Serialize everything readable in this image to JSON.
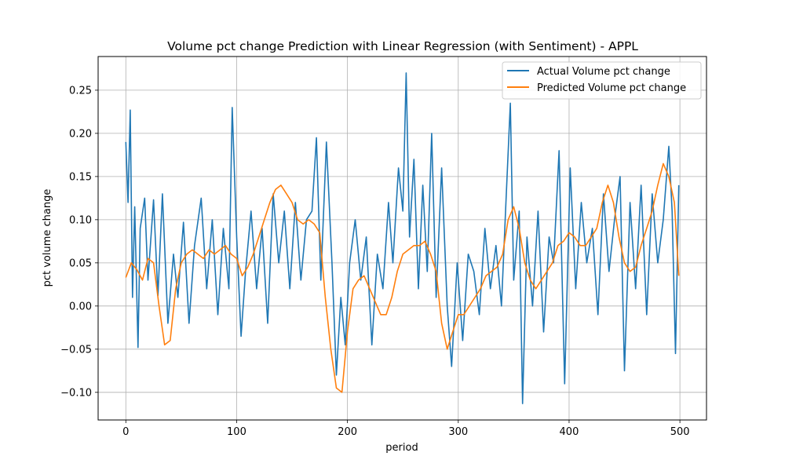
{
  "chart_data": {
    "type": "line",
    "title": "Volume pct change Prediction with Linear Regression (with Sentiment) - APPL",
    "xlabel": "period",
    "ylabel": "pct volume change",
    "xlim": [
      -25,
      524
    ],
    "ylim": [
      -0.132,
      0.289
    ],
    "xticks": [
      0,
      100,
      200,
      300,
      400,
      500
    ],
    "xtick_labels": [
      "0",
      "100",
      "200",
      "300",
      "400",
      "500"
    ],
    "yticks": [
      -0.1,
      -0.05,
      0.0,
      0.05,
      0.1,
      0.15,
      0.2,
      0.25
    ],
    "ytick_labels": [
      "−0.10",
      "−0.05",
      "0.00",
      "0.05",
      "0.10",
      "0.15",
      "0.20",
      "0.25"
    ],
    "grid": true,
    "legend_position": "top-right",
    "series": [
      {
        "name": "Actual Volume pct change",
        "color": "#1f77b4",
        "x": [
          0,
          2,
          4,
          6,
          8,
          11,
          13,
          17,
          20,
          25,
          29,
          33,
          38,
          43,
          47,
          52,
          57,
          62,
          68,
          73,
          78,
          83,
          88,
          93,
          96,
          100,
          104,
          108,
          113,
          118,
          123,
          128,
          133,
          138,
          143,
          148,
          153,
          158,
          163,
          168,
          172,
          176,
          181,
          186,
          190,
          194,
          198,
          202,
          207,
          212,
          217,
          222,
          227,
          232,
          237,
          241,
          246,
          250,
          253,
          256,
          260,
          264,
          268,
          272,
          276,
          280,
          285,
          290,
          294,
          299,
          304,
          309,
          314,
          319,
          324,
          329,
          334,
          339,
          343,
          347,
          350,
          355,
          358,
          362,
          367,
          372,
          377,
          382,
          386,
          391,
          396,
          401,
          406,
          411,
          416,
          421,
          426,
          431,
          436,
          441,
          446,
          450,
          455,
          460,
          465,
          470,
          475,
          480,
          485,
          490,
          493,
          496,
          499
        ],
        "y": [
          0.19,
          0.12,
          0.227,
          0.01,
          0.115,
          -0.048,
          0.09,
          0.125,
          0.03,
          0.123,
          0.012,
          0.13,
          -0.02,
          0.06,
          0.01,
          0.097,
          -0.02,
          0.07,
          0.125,
          0.02,
          0.1,
          -0.01,
          0.09,
          0.02,
          0.23,
          0.08,
          -0.035,
          0.04,
          0.11,
          0.02,
          0.09,
          -0.02,
          0.13,
          0.05,
          0.11,
          0.02,
          0.12,
          0.03,
          0.1,
          0.11,
          0.195,
          0.03,
          0.19,
          0.05,
          -0.08,
          0.01,
          -0.045,
          0.05,
          0.1,
          0.03,
          0.08,
          -0.045,
          0.06,
          0.02,
          0.12,
          0.05,
          0.16,
          0.11,
          0.27,
          0.08,
          0.17,
          0.02,
          0.14,
          0.04,
          0.2,
          0.01,
          0.16,
          0.0,
          -0.07,
          0.05,
          -0.04,
          0.06,
          0.04,
          -0.01,
          0.09,
          0.02,
          0.07,
          0.0,
          0.12,
          0.235,
          0.03,
          0.11,
          -0.113,
          0.08,
          0.0,
          0.11,
          -0.03,
          0.08,
          0.05,
          0.18,
          -0.09,
          0.16,
          0.02,
          0.12,
          0.05,
          0.09,
          -0.01,
          0.13,
          0.04,
          0.1,
          0.15,
          -0.075,
          0.12,
          0.02,
          0.14,
          -0.01,
          0.13,
          0.05,
          0.1,
          0.185,
          0.11,
          -0.055,
          0.14
        ]
      },
      {
        "name": "Predicted Volume pct change",
        "color": "#ff7f0e",
        "x": [
          0,
          5,
          10,
          15,
          20,
          25,
          30,
          35,
          40,
          45,
          50,
          55,
          60,
          65,
          70,
          75,
          80,
          85,
          90,
          95,
          100,
          105,
          110,
          115,
          120,
          125,
          130,
          135,
          140,
          145,
          150,
          155,
          160,
          165,
          170,
          175,
          180,
          185,
          190,
          195,
          200,
          205,
          210,
          215,
          220,
          225,
          230,
          235,
          240,
          245,
          250,
          255,
          260,
          265,
          270,
          275,
          280,
          285,
          290,
          295,
          300,
          305,
          310,
          315,
          320,
          325,
          330,
          335,
          340,
          345,
          350,
          355,
          360,
          365,
          370,
          375,
          380,
          385,
          390,
          395,
          400,
          405,
          410,
          415,
          420,
          425,
          430,
          435,
          440,
          445,
          450,
          455,
          460,
          465,
          470,
          475,
          480,
          485,
          490,
          495,
          499
        ],
        "y": [
          0.033,
          0.05,
          0.042,
          0.03,
          0.055,
          0.05,
          0.0,
          -0.045,
          -0.04,
          0.02,
          0.05,
          0.06,
          0.065,
          0.06,
          0.055,
          0.065,
          0.06,
          0.065,
          0.07,
          0.06,
          0.055,
          0.035,
          0.045,
          0.06,
          0.08,
          0.1,
          0.12,
          0.135,
          0.14,
          0.13,
          0.12,
          0.1,
          0.095,
          0.1,
          0.095,
          0.085,
          0.01,
          -0.05,
          -0.095,
          -0.1,
          -0.03,
          0.02,
          0.03,
          0.035,
          0.02,
          0.005,
          -0.01,
          -0.01,
          0.01,
          0.04,
          0.06,
          0.065,
          0.07,
          0.07,
          0.075,
          0.06,
          0.04,
          -0.02,
          -0.05,
          -0.03,
          -0.01,
          -0.01,
          0.0,
          0.01,
          0.02,
          0.035,
          0.04,
          0.045,
          0.06,
          0.1,
          0.115,
          0.09,
          0.05,
          0.03,
          0.02,
          0.03,
          0.04,
          0.05,
          0.07,
          0.075,
          0.085,
          0.08,
          0.07,
          0.07,
          0.08,
          0.09,
          0.12,
          0.14,
          0.12,
          0.08,
          0.05,
          0.04,
          0.045,
          0.07,
          0.09,
          0.11,
          0.14,
          0.165,
          0.15,
          0.12,
          0.035
        ]
      }
    ]
  }
}
